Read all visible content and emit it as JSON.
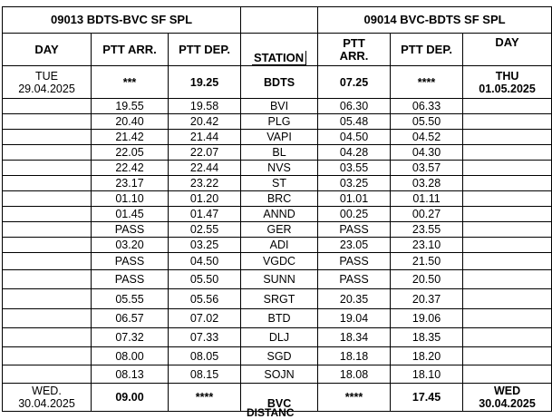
{
  "table": {
    "left_title": "09013  BDTS-BVC SF SPL",
    "right_title": "09014  BVC-BDTS SF SPL",
    "columns": [
      "DAY",
      "PTT ARR.",
      "PTT DEP.",
      "STATION",
      "PTT\nARR.",
      "PTT DEP.",
      "DAY"
    ],
    "rows": [
      {
        "left_day": "TUE\n29.04.2025",
        "left_arr": "***",
        "left_dep": "19.25",
        "station": "BDTS",
        "right_arr": "07.25",
        "right_dep": "****",
        "right_day": "THU\n01.05.2025"
      },
      {
        "left_arr": "19.55",
        "left_dep": "19.58",
        "station": "BVI",
        "right_arr": "06.30",
        "right_dep": "06.33"
      },
      {
        "left_arr": "20.40",
        "left_dep": "20.42",
        "station": "PLG",
        "right_arr": "05.48",
        "right_dep": "05.50"
      },
      {
        "left_arr": "21.42",
        "left_dep": "21.44",
        "station": "VAPI",
        "right_arr": "04.50",
        "right_dep": "04.52"
      },
      {
        "left_arr": "22.05",
        "left_dep": "22.07",
        "station": "BL",
        "right_arr": "04.28",
        "right_dep": "04.30"
      },
      {
        "left_arr": "22.42",
        "left_dep": "22.44",
        "station": "NVS",
        "right_arr": "03.55",
        "right_dep": "03.57"
      },
      {
        "left_arr": "23.17",
        "left_dep": "23.22",
        "station": "ST",
        "right_arr": "03.25",
        "right_dep": "03.28"
      },
      {
        "left_arr": "01.10",
        "left_dep": "01.20",
        "station": "BRC",
        "right_arr": "01.01",
        "right_dep": "01.11"
      },
      {
        "left_arr": "01.45",
        "left_dep": "01.47",
        "station": "ANND",
        "right_arr": "00.25",
        "right_dep": "00.27"
      },
      {
        "left_arr": "PASS",
        "left_dep": "02.55",
        "station": "GER",
        "right_arr": "PASS",
        "right_dep": "23.55"
      },
      {
        "left_arr": "03.20",
        "left_dep": "03.25",
        "station": "ADI",
        "right_arr": "23.05",
        "right_dep": "23.10"
      },
      {
        "left_arr": "PASS",
        "left_dep": "04.50",
        "station": "VGDC",
        "right_arr": "PASS",
        "right_dep": "21.50"
      },
      {
        "left_arr": "PASS",
        "left_dep": "05.50",
        "station": "SUNN",
        "right_arr": "PASS",
        "right_dep": "20.50"
      },
      {
        "left_arr": "05.55",
        "left_dep": "05.56",
        "station": "SRGT",
        "right_arr": "20.35",
        "right_dep": "20.37"
      },
      {
        "left_arr": "06.57",
        "left_dep": "07.02",
        "station": "BTD",
        "right_arr": "19.04",
        "right_dep": "19.06"
      },
      {
        "left_arr": "07.32",
        "left_dep": "07.33",
        "station": "DLJ",
        "right_arr": "18.34",
        "right_dep": "18.35"
      },
      {
        "left_arr": "08.00",
        "left_dep": "08.05",
        "station": "SGD",
        "right_arr": "18.18",
        "right_dep": "18.20"
      },
      {
        "left_arr": "08.13",
        "left_dep": "08.15",
        "station": "SOJN",
        "right_arr": "18.08",
        "right_dep": "18.10"
      },
      {
        "left_day": "WED.\n30.04.2025",
        "left_arr": "09.00",
        "left_dep": "****",
        "station": "BVC",
        "right_arr": "****",
        "right_dep": "17.45",
        "right_day": "WED\n30.04.2025"
      }
    ],
    "next_row_label": "DISTANC"
  }
}
